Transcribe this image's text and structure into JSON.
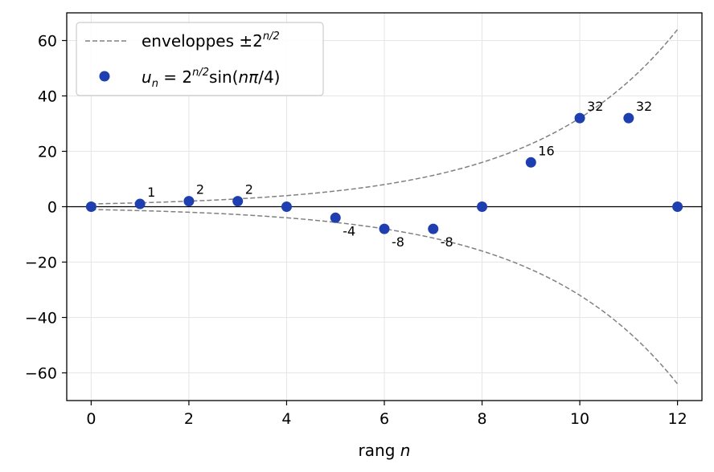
{
  "chart_data": {
    "type": "scatter",
    "xlabel": "rang",
    "xlabel_var": "n",
    "xlim": [
      -0.5,
      12.5
    ],
    "ylim": [
      -70,
      70
    ],
    "x_ticks": [
      0,
      2,
      4,
      6,
      8,
      10,
      12
    ],
    "y_ticks": [
      -60,
      -40,
      -20,
      0,
      20,
      40,
      60
    ],
    "y_tick_labels": [
      "−60",
      "−40",
      "−20",
      "0",
      "20",
      "40",
      "60"
    ],
    "grid": true,
    "legend_position": "upper-left",
    "colors": {
      "points": "#1f3fb0",
      "envelope": "#808080",
      "zero_line": "#000000",
      "grid": "#e6e6e6"
    },
    "series": [
      {
        "kind": "points",
        "x": [
          0,
          1,
          2,
          3,
          4,
          5,
          6,
          7,
          8,
          9,
          10,
          11,
          12
        ],
        "values": [
          0,
          1,
          2,
          2,
          0,
          -4,
          -8,
          -8,
          0,
          16,
          32,
          32,
          0
        ]
      },
      {
        "kind": "envelope",
        "formula_upper": "2^(n/2)",
        "formula_lower": "-2^(n/2)"
      }
    ],
    "data_labels": [
      {
        "x": 1,
        "y": 1,
        "text": "1",
        "side": "above"
      },
      {
        "x": 2,
        "y": 2,
        "text": "2",
        "side": "above"
      },
      {
        "x": 3,
        "y": 2,
        "text": "2",
        "side": "above"
      },
      {
        "x": 5,
        "y": -4,
        "text": "-4",
        "side": "below"
      },
      {
        "x": 6,
        "y": -8,
        "text": "-8",
        "side": "below"
      },
      {
        "x": 7,
        "y": -8,
        "text": "-8",
        "side": "below"
      },
      {
        "x": 9,
        "y": 16,
        "text": "16",
        "side": "above"
      },
      {
        "x": 10,
        "y": 32,
        "text": "32",
        "side": "above"
      },
      {
        "x": 11,
        "y": 32,
        "text": "32",
        "side": "above"
      }
    ],
    "legend": {
      "envelope": {
        "text": "enveloppes ±2",
        "sup": "n/2"
      },
      "points": {
        "u": "u",
        "sub": "n",
        "eq": " = 2",
        "sup": "n/2",
        "tail": "sin(",
        "italic": "nπ",
        "end": "/4)"
      }
    }
  }
}
